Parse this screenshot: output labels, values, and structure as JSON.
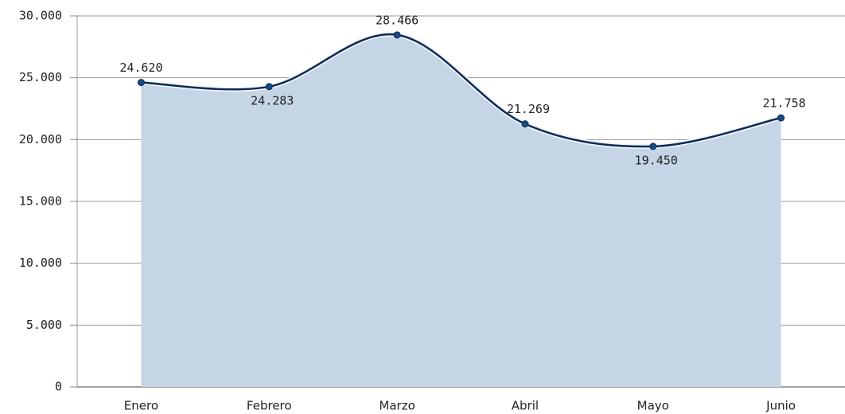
{
  "chart_data": {
    "type": "area",
    "categories": [
      "Enero",
      "Febrero",
      "Marzo",
      "Abril",
      "Mayo",
      "Junio"
    ],
    "values": [
      24620,
      24283,
      28466,
      21269,
      19450,
      21758
    ],
    "value_labels": [
      "24.620",
      "24.283",
      "28.466",
      "21.269",
      "19.450",
      "21.758"
    ],
    "color": "#0d2a55",
    "fill": "#c5d5e5",
    "ylim": [
      0,
      30000
    ],
    "yticks": [
      0,
      {
        "value": 5000,
        "label": "5.000"
      },
      {
        "value": 10000,
        "label": "10.000"
      },
      {
        "value": 15000,
        "label": "15.000"
      },
      {
        "value": 20000,
        "label": "20.000"
      },
      {
        "value": 25000,
        "label": "25.000"
      },
      {
        "value": 30000,
        "label": "30.000"
      }
    ],
    "grid": true
  }
}
